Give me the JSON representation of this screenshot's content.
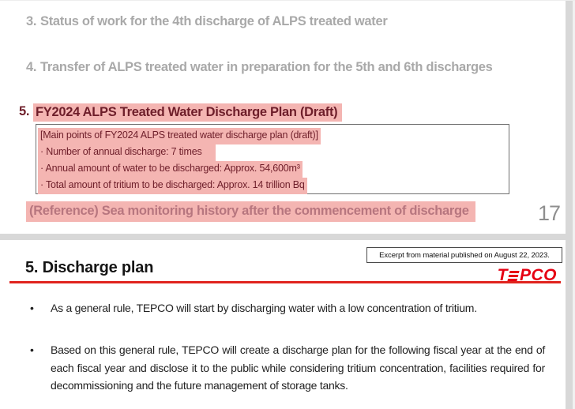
{
  "toc": {
    "items": [
      {
        "num": "3.",
        "label": "Status of work for the 4th discharge of ALPS treated water"
      },
      {
        "num": "4.",
        "label": "Transfer of ALPS treated water in preparation for the 5th and 6th discharges"
      },
      {
        "num": "5.",
        "label": "FY2024 ALPS Treated Water Discharge Plan (Draft)"
      }
    ],
    "main_points_box": {
      "title": "[Main points of FY2024 ALPS treated water discharge plan (draft)]",
      "points": [
        "· Number of annual discharge: 7 times",
        "· Annual amount of water to be discharged: Approx. 54,600m³",
        "· Total amount of tritium to be discharged: Approx. 14 trillion Bq"
      ]
    },
    "reference": "(Reference) Sea monitoring history after the commencement of discharge",
    "page_number": "17"
  },
  "slide": {
    "excerpt_note": "Excerpt from material published on August 22, 2023.",
    "title": "5. Discharge plan",
    "logo_text": "TEPCO",
    "bullet_char": "•",
    "bullets": [
      "As a general rule, TEPCO will start by discharging water with a low concentration of tritium.",
      "Based on this general rule, TEPCO will create a discharge plan for the following fiscal year at the end of each fiscal year and disclose it to the public while considering tritium concentration, facilities required for decommissioning and the future management of storage tanks."
    ]
  },
  "colors": {
    "highlight_pink": "#f4b5b2",
    "heading_maroon": "#6e1e2a",
    "reference_rose": "#b7767f",
    "inactive_gray": "#a9a9a9",
    "rule_red": "#e0231e",
    "logo_red": "#e60012",
    "divider_gray": "#d8d8d8"
  }
}
